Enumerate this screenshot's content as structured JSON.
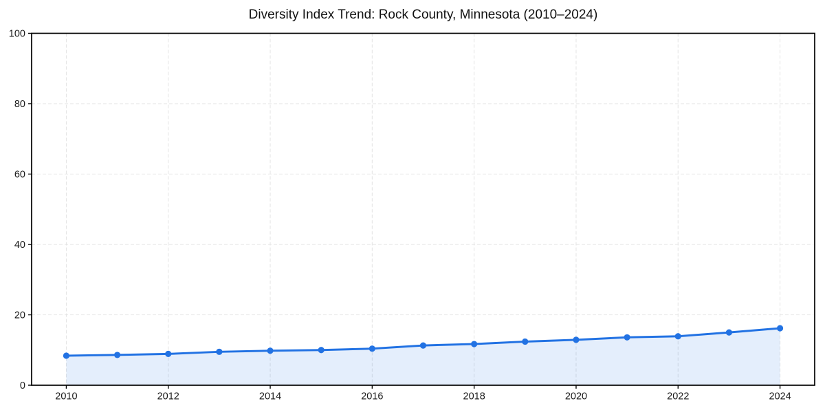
{
  "chart": {
    "title": "Diversity Index Trend: Rock County, Minnesota (2010–2024)"
  },
  "chart_data": {
    "type": "line",
    "title": "Diversity Index Trend: Rock County, Minnesota (2010–2024)",
    "x": [
      2010,
      2011,
      2012,
      2013,
      2014,
      2015,
      2016,
      2017,
      2018,
      2019,
      2020,
      2021,
      2022,
      2023,
      2024
    ],
    "series": [
      {
        "name": "Diversity Index",
        "values": [
          8.4,
          8.6,
          8.9,
          9.5,
          9.8,
          10.0,
          10.4,
          11.3,
          11.7,
          12.4,
          12.9,
          13.6,
          13.9,
          15.0,
          16.2
        ]
      }
    ],
    "xlabel": "",
    "ylabel": "",
    "xlim": [
      2009.32,
      2024.68
    ],
    "ylim": [
      0,
      100
    ],
    "x_ticks": [
      2010,
      2012,
      2014,
      2016,
      2018,
      2020,
      2022,
      2024
    ],
    "y_ticks": [
      0,
      20,
      40,
      60,
      80,
      100
    ],
    "grid": true,
    "grid_style": "dashed",
    "legend": false,
    "area_fill": true,
    "marker": "circle",
    "colors": {
      "line": "#2272e3",
      "marker": "#2272e3",
      "fill": "#2272e3",
      "fill_opacity": 0.12,
      "grid": "#e3e3e3",
      "spine": "#000000",
      "tick": "#000000",
      "tick_label": "#1a1a1a",
      "title": "#111111",
      "background": "#ffffff"
    }
  }
}
